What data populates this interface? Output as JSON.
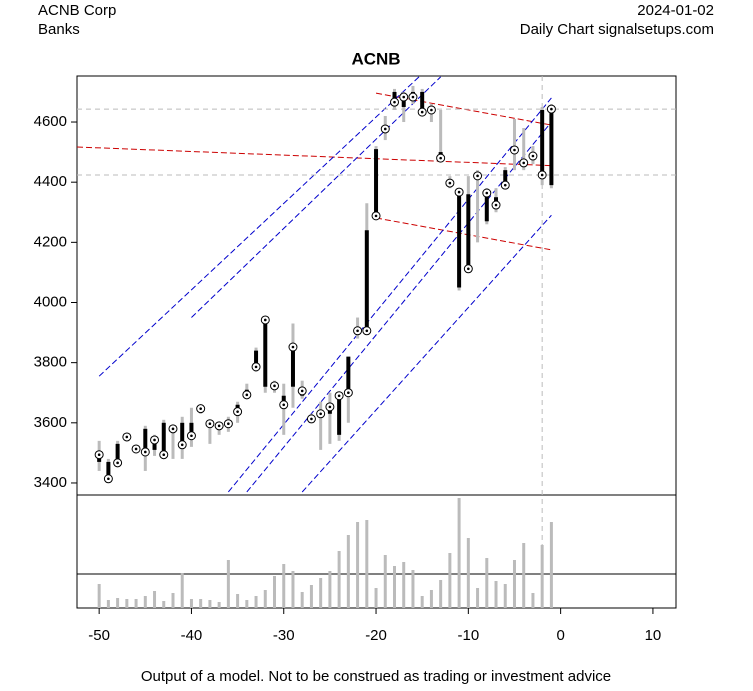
{
  "chart_data": {
    "type": "candlestick",
    "company": "ACNB Corp",
    "sector": "Banks",
    "date": "2024-01-02",
    "source": "Daily Chart signalsetups.com",
    "title": "ACNB",
    "note": "Output of a model. Not to be construed as trading or investment advice",
    "x": [
      -50,
      -49,
      -48,
      -47,
      -46,
      -45,
      -44,
      -43,
      -42,
      -41,
      -40,
      -39,
      -38,
      -37,
      -36,
      -35,
      -34,
      -33,
      -32,
      -31,
      -30,
      -29,
      -28,
      -27,
      -26,
      -25,
      -24,
      -23,
      -22,
      -21,
      -20,
      -19,
      -18,
      -17,
      -16,
      -15,
      -14,
      -13,
      -12,
      -11,
      -10,
      -9,
      -8,
      -7,
      -6,
      -5,
      -4,
      -3,
      -2,
      -1
    ],
    "open": [
      3470,
      3470,
      3530,
      3560,
      3510,
      3580,
      3510,
      3600,
      3570,
      3600,
      3600,
      3650,
      3600,
      3580,
      3610,
      3660,
      3710,
      3840,
      3720,
      3720,
      3690,
      3720,
      3690,
      3610,
      3640,
      3630,
      3560,
      3820,
      3900,
      4240,
      4510,
      4580,
      4700,
      4650,
      4700,
      4700,
      4650,
      4500,
      4400,
      4050,
      4360,
      4420,
      4270,
      4350,
      4440,
      4510,
      4460,
      4480,
      4640,
      4390
    ],
    "close": [
      3494,
      3414,
      3467,
      3553,
      3513,
      3503,
      3543,
      3494,
      3580,
      3527,
      3557,
      3647,
      3597,
      3590,
      3597,
      3637,
      3693,
      3786,
      3942,
      3723,
      3660,
      3852,
      3706,
      3613,
      3630,
      3653,
      3690,
      3700,
      3906,
      3906,
      4288,
      4577,
      4666,
      4683,
      4683,
      4633,
      4640,
      4480,
      4397,
      4367,
      4112,
      4421,
      4364,
      4324,
      4390,
      4507,
      4464,
      4487,
      4424,
      4643
    ],
    "high": [
      3540,
      3480,
      3540,
      3565,
      3520,
      3590,
      3560,
      3610,
      3590,
      3620,
      3650,
      3660,
      3610,
      3600,
      3620,
      3670,
      3730,
      3850,
      3950,
      3740,
      3730,
      3930,
      3740,
      3630,
      3670,
      3700,
      3700,
      3820,
      3950,
      4330,
      4520,
      4620,
      4710,
      4700,
      4720,
      4710,
      4660,
      4640,
      4420,
      4380,
      4420,
      4440,
      4380,
      4380,
      4450,
      4610,
      4580,
      4520,
      4650,
      4660
    ],
    "low": [
      3440,
      3405,
      3460,
      3540,
      3500,
      3440,
      3490,
      3480,
      3480,
      3480,
      3520,
      3630,
      3530,
      3560,
      3570,
      3600,
      3680,
      3770,
      3700,
      3700,
      3560,
      3650,
      3680,
      3600,
      3510,
      3530,
      3540,
      3600,
      3880,
      3900,
      4280,
      4540,
      4640,
      4600,
      4660,
      4620,
      4600,
      4470,
      4380,
      4040,
      4100,
      4200,
      4260,
      4300,
      4380,
      4440,
      4440,
      4460,
      4390,
      4380
    ],
    "volume": [
      24,
      8,
      10,
      9,
      9,
      12,
      17,
      7,
      15,
      35,
      9,
      9,
      8,
      6,
      48,
      14,
      8,
      12,
      18,
      32,
      44,
      37,
      16,
      23,
      30,
      37,
      57,
      73,
      86,
      88,
      20,
      53,
      42,
      46,
      38,
      12,
      18,
      28,
      55,
      110,
      70,
      20,
      50,
      27,
      24,
      48,
      65,
      15,
      63,
      86
    ],
    "vlim": [
      0,
      113
    ],
    "xlim": [
      -52.4,
      12.5
    ],
    "ylim": [
      3360,
      4753
    ],
    "xticks": [
      -50,
      -40,
      -30,
      -20,
      -10,
      0,
      10
    ],
    "yticks": [
      3400,
      3600,
      3800,
      4000,
      4200,
      4400,
      4600
    ],
    "hlines": [
      4643,
      4424
    ],
    "vline": -2,
    "trend_lines": [
      {
        "color": "#cc0000",
        "points": [
          [
            -52.4,
            4517
          ],
          [
            -1,
            4455
          ]
        ]
      },
      {
        "color": "#cc0000",
        "points": [
          [
            -20,
            4696
          ],
          [
            -1,
            4590
          ]
        ]
      },
      {
        "color": "#cc0000",
        "points": [
          [
            -20,
            4281
          ],
          [
            -1,
            4175
          ]
        ]
      },
      {
        "color": "#0000cc",
        "points": [
          [
            -50,
            3755
          ],
          [
            -15,
            4760
          ]
        ]
      },
      {
        "color": "#0000cc",
        "points": [
          [
            -40,
            3950
          ],
          [
            -13,
            4750
          ]
        ]
      },
      {
        "color": "#0000cc",
        "points": [
          [
            -36,
            3370
          ],
          [
            -1,
            4680
          ]
        ]
      },
      {
        "color": "#0000cc",
        "points": [
          [
            -34,
            3370
          ],
          [
            -1,
            4600
          ]
        ]
      },
      {
        "color": "#0000cc",
        "points": [
          [
            -28,
            3370
          ],
          [
            -1,
            4290
          ]
        ]
      }
    ]
  }
}
